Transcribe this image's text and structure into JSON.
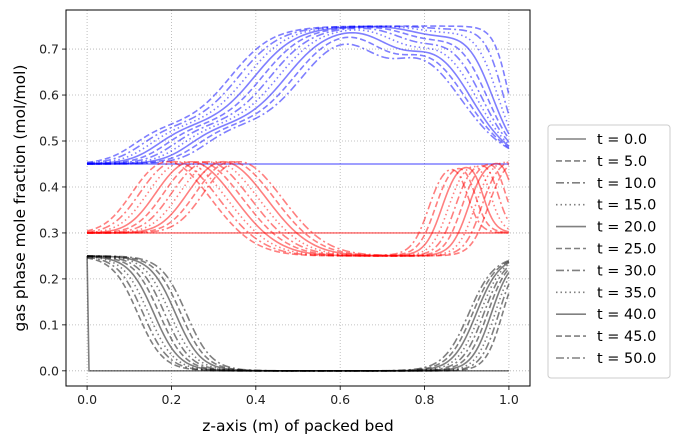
{
  "chart_data": {
    "type": "line",
    "title": "",
    "xlabel": "z-axis (m) of packed bed",
    "ylabel": "gas phase mole fraction (mol/mol)",
    "xlim": [
      -0.05,
      1.05
    ],
    "ylim": [
      -0.033,
      0.785
    ],
    "x_ticks": [
      "0.0",
      "0.2",
      "0.4",
      "0.6",
      "0.8",
      "1.0"
    ],
    "y_ticks": [
      "0.0",
      "0.1",
      "0.2",
      "0.3",
      "0.4",
      "0.5",
      "0.6",
      "0.7"
    ],
    "grid": true,
    "grid_style": "dotted",
    "legend_position": "outside-right",
    "times": [
      0,
      5,
      10,
      15,
      20,
      25,
      30,
      35,
      40,
      45,
      50
    ],
    "legend_entries": [
      "t = 0.0",
      "t = 5.0",
      "t = 10.0",
      "t = 15.0",
      "t = 20.0",
      "t = 25.0",
      "t = 30.0",
      "t = 35.0",
      "t = 40.0",
      "t = 45.0",
      "t = 50.0"
    ],
    "line_styles": [
      "solid",
      "dashed",
      "dashdot",
      "dotted",
      "solid",
      "dashed",
      "dashdot",
      "dotted",
      "solid",
      "dashed",
      "dashdot"
    ],
    "components": [
      {
        "color": "#0000ff",
        "feed_front_z": [
          0.0,
          0.16,
          0.17,
          0.18,
          0.2,
          0.22,
          0.24,
          0.26,
          0.28,
          0.3,
          0.33
        ]
      },
      {
        "color": "#ff0000",
        "feed_front_z": [
          0.0,
          0.16,
          0.17,
          0.18,
          0.2,
          0.22,
          0.24,
          0.26,
          0.28,
          0.3,
          0.33
        ]
      },
      {
        "color": "#000000",
        "feed_front_z": [
          0.0,
          0.12,
          0.13,
          0.14,
          0.155,
          0.17,
          0.185,
          0.2,
          0.21,
          0.22,
          0.235
        ]
      }
    ],
    "series_samples": {
      "z": [
        0.0,
        0.1,
        0.2,
        0.3,
        0.4,
        0.5,
        0.6,
        0.7,
        0.8,
        0.9,
        1.0
      ],
      "blue_t50": [
        0.45,
        0.52,
        0.62,
        0.7,
        0.74,
        0.75,
        0.75,
        0.7,
        0.56,
        0.5,
        0.45
      ],
      "red_t50": [
        0.3,
        0.36,
        0.42,
        0.43,
        0.36,
        0.29,
        0.25,
        0.25,
        0.4,
        0.46,
        0.3
      ],
      "black_t50": [
        0.25,
        0.25,
        0.15,
        0.03,
        0.0,
        0.0,
        0.0,
        0.0,
        0.0,
        0.2,
        0.25
      ]
    }
  },
  "legend_line_color": "#808080"
}
